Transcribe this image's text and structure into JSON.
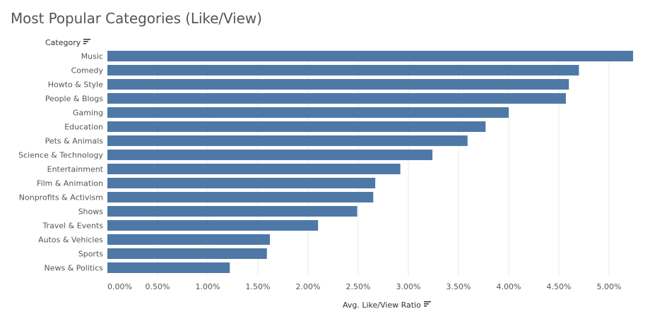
{
  "title": "Most Popular Categories (Like/View)",
  "category_header": "Category",
  "colors": {
    "bar": "#4e79a7",
    "grid": "#e8e8e8",
    "axis_text": "#555555"
  },
  "icons": {
    "sort": "sort-descending-icon"
  },
  "chart_data": {
    "type": "bar",
    "orientation": "horizontal",
    "title": "Most Popular Categories (Like/View)",
    "ylabel": "Category",
    "xlabel": "Avg. Like/View Ratio",
    "categories": [
      "Music",
      "Comedy",
      "Howto & Style",
      "People & Blogs",
      "Gaming",
      "Education",
      "Pets & Animals",
      "Science & Technology",
      "Entertainment",
      "Film & Animation",
      "Nonprofits & Activism",
      "Shows",
      "Travel & Events",
      "Autos & Vehicles",
      "Sports",
      "News & Politics"
    ],
    "values": [
      5.24,
      4.7,
      4.6,
      4.57,
      4.0,
      3.77,
      3.59,
      3.24,
      2.92,
      2.67,
      2.65,
      2.49,
      2.1,
      1.62,
      1.59,
      1.22
    ],
    "value_unit": "%",
    "xlim": [
      0,
      5.5
    ],
    "xticks": [
      "0.00%",
      "0.50%",
      "1.00%",
      "1.50%",
      "2.00%",
      "2.50%",
      "3.00%",
      "3.50%",
      "4.00%",
      "4.50%",
      "5.00%"
    ],
    "grid": true
  }
}
